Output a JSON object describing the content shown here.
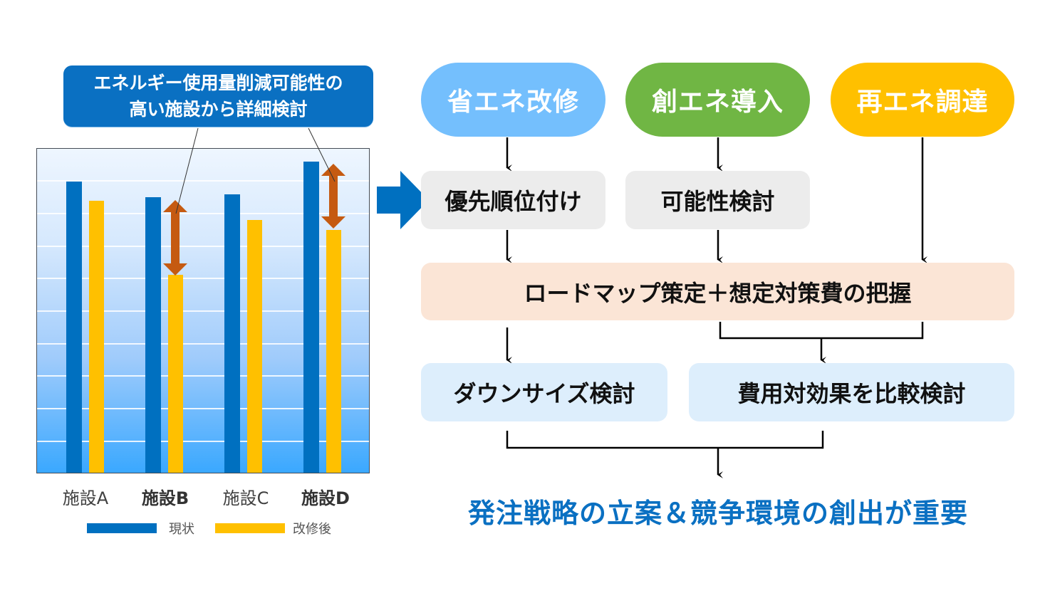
{
  "callout": {
    "line1": "エネルギー使用量削減可能性の",
    "line2": "高い施設から詳細検討"
  },
  "chart_data": {
    "type": "bar",
    "title": "",
    "categories": [
      "施設A",
      "施設B",
      "施設C",
      "施設D"
    ],
    "highlighted_categories": [
      "施設B",
      "施設D"
    ],
    "series": [
      {
        "name": "現状",
        "color": "#0070c0",
        "values": [
          9.0,
          8.5,
          8.6,
          9.6
        ]
      },
      {
        "name": "改修後",
        "color": "#ffc000",
        "values": [
          8.4,
          6.1,
          7.8,
          7.5
        ]
      }
    ],
    "xlabel": "",
    "ylabel": "",
    "ylim": [
      0,
      10
    ],
    "grid": true,
    "gridlines": 10,
    "legend_position": "bottom",
    "annotations": [
      {
        "category": "施設B",
        "type": "double-arrow",
        "color": "#c55a11"
      },
      {
        "category": "施設D",
        "type": "double-arrow",
        "color": "#c55a11"
      }
    ]
  },
  "legend": {
    "current_label": "現状",
    "after_label": "改修後"
  },
  "flow": {
    "pills": [
      {
        "label": "省エネ改修",
        "color": "#74bffd"
      },
      {
        "label": "創エネ導入",
        "color": "#70b644"
      },
      {
        "label": "再エネ調達",
        "color": "#ffc000"
      }
    ],
    "step2": [
      {
        "label": "優先順位付け"
      },
      {
        "label": "可能性検討"
      }
    ],
    "roadmap": "ロードマップ策定＋想定対策費の把握",
    "step4": [
      {
        "label": "ダウンサイズ検討"
      },
      {
        "label": "費用対効果を比較検討"
      }
    ],
    "conclusion": "発注戦略の立案＆競争環境の創出が重要"
  },
  "colors": {
    "accent_blue": "#0a70c2",
    "arrow_orange": "#c55a11"
  }
}
